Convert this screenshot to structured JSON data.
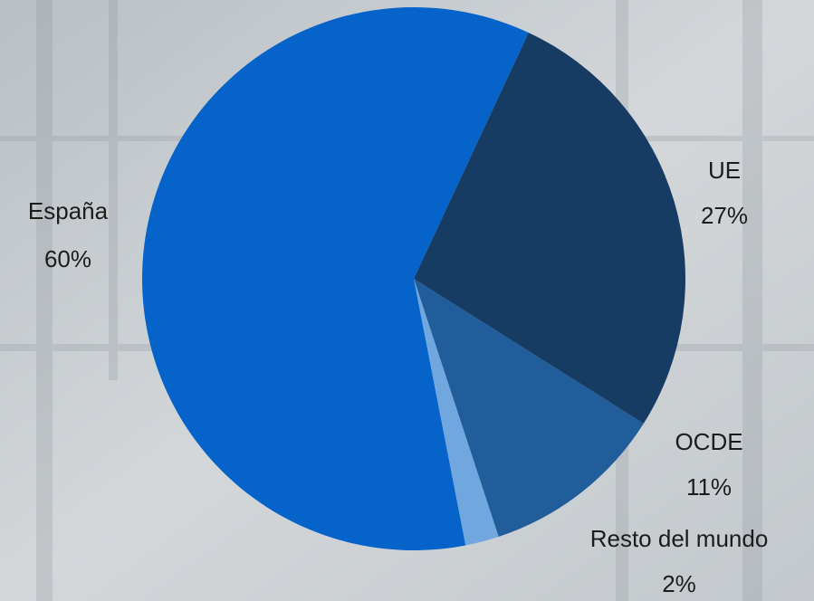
{
  "chart_data": {
    "type": "pie",
    "categories": [
      "España",
      "UE",
      "OCDE",
      "Resto del mundo"
    ],
    "values": [
      60,
      27,
      11,
      2
    ],
    "value_labels": [
      "60%",
      "27%",
      "11%",
      "2%"
    ],
    "colors": [
      "#0563c9",
      "#173c63",
      "#205d9a",
      "#6fa7de"
    ]
  }
}
